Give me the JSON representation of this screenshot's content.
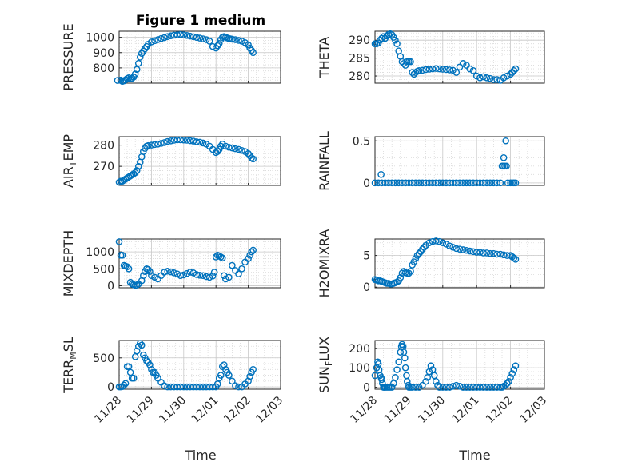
{
  "figure": {
    "title": "Figure 1 medium",
    "xlabel": "Time"
  },
  "chart_data": [
    {
      "type": "scatter",
      "ylabel": "PRESSURE",
      "ylim": [
        700,
        1040
      ],
      "yticks": [
        800,
        900,
        1000
      ],
      "xlim": [
        "11/28",
        "12/03"
      ],
      "xticks": [
        "11/28",
        "11/29",
        "11/30",
        "12/01",
        "12/02",
        "12/03"
      ],
      "grid": true,
      "x": [
        -0.05,
        0.05,
        0.1,
        0.15,
        0.2,
        0.25,
        0.3,
        0.35,
        0.4,
        0.45,
        0.5,
        0.55,
        0.6,
        0.65,
        0.7,
        0.75,
        0.8,
        0.85,
        0.9,
        1.0,
        1.1,
        1.2,
        1.3,
        1.4,
        1.5,
        1.6,
        1.7,
        1.8,
        1.9,
        2.0,
        2.1,
        2.2,
        2.3,
        2.4,
        2.5,
        2.6,
        2.7,
        2.8,
        2.9,
        3.0,
        3.05,
        3.1,
        3.15,
        3.2,
        3.25,
        3.3,
        3.35,
        3.4,
        3.45,
        3.5,
        3.6,
        3.7,
        3.8,
        3.9,
        4.0,
        4.05,
        4.1,
        4.15
      ],
      "y": [
        718,
        720,
        712,
        715,
        722,
        730,
        735,
        728,
        732,
        740,
        760,
        790,
        830,
        870,
        895,
        910,
        925,
        940,
        955,
        970,
        978,
        985,
        992,
        998,
        1005,
        1010,
        1014,
        1016,
        1018,
        1016,
        1012,
        1008,
        1004,
        1000,
        995,
        990,
        985,
        975,
        940,
        930,
        945,
        960,
        985,
        1000,
        1005,
        1002,
        996,
        992,
        990,
        988,
        985,
        980,
        975,
        965,
        950,
        930,
        915,
        900
      ]
    },
    {
      "type": "scatter",
      "ylabel": "THETA",
      "ylim": [
        278,
        292.5
      ],
      "yticks": [
        280,
        285,
        290
      ],
      "xlim": [
        "11/28",
        "12/03"
      ],
      "xticks": [
        "11/28",
        "11/29",
        "11/30",
        "12/01",
        "12/02",
        "12/03"
      ],
      "grid": true,
      "x": [
        0.0,
        0.05,
        0.1,
        0.15,
        0.2,
        0.25,
        0.3,
        0.35,
        0.4,
        0.45,
        0.5,
        0.55,
        0.6,
        0.65,
        0.7,
        0.75,
        0.8,
        0.85,
        0.9,
        0.95,
        1.0,
        1.05,
        1.1,
        1.15,
        1.2,
        1.25,
        1.3,
        1.4,
        1.5,
        1.6,
        1.7,
        1.8,
        1.9,
        2.0,
        2.1,
        2.2,
        2.3,
        2.4,
        2.5,
        2.6,
        2.7,
        2.8,
        2.9,
        3.0,
        3.1,
        3.2,
        3.3,
        3.4,
        3.5,
        3.6,
        3.7,
        3.8,
        3.9,
        4.0,
        4.05,
        4.1,
        4.15
      ],
      "y": [
        289.0,
        289.0,
        289.2,
        290.0,
        290.5,
        291.0,
        290.5,
        291.2,
        291.6,
        291.8,
        291.5,
        290.8,
        290.0,
        289.0,
        287.0,
        285.5,
        284.0,
        283.5,
        283.0,
        284.0,
        284.0,
        284.0,
        281.0,
        280.5,
        281.0,
        281.3,
        281.5,
        281.6,
        281.8,
        281.9,
        282.0,
        282.1,
        282.0,
        281.9,
        281.8,
        281.7,
        281.6,
        281.0,
        282.5,
        283.5,
        283.0,
        282.0,
        281.5,
        280.0,
        279.5,
        279.8,
        279.5,
        279.3,
        279.0,
        279.0,
        278.8,
        279.5,
        280.0,
        280.5,
        281.0,
        281.5,
        282.0
      ]
    },
    {
      "type": "scatter",
      "ylabel": "AIR_TEMP",
      "ylim": [
        261,
        284
      ],
      "yticks": [
        260,
        270,
        280
      ],
      "xlim": [
        "11/28",
        "12/03"
      ],
      "xticks": [
        "11/28",
        "11/29",
        "11/30",
        "12/01",
        "12/02",
        "12/03"
      ],
      "grid": true,
      "x": [
        0.0,
        0.05,
        0.1,
        0.15,
        0.2,
        0.25,
        0.3,
        0.35,
        0.4,
        0.45,
        0.5,
        0.55,
        0.6,
        0.65,
        0.7,
        0.75,
        0.8,
        0.85,
        0.9,
        1.0,
        1.1,
        1.2,
        1.3,
        1.4,
        1.5,
        1.6,
        1.7,
        1.8,
        1.9,
        2.0,
        2.1,
        2.2,
        2.3,
        2.4,
        2.5,
        2.6,
        2.7,
        2.8,
        2.9,
        3.0,
        3.05,
        3.1,
        3.15,
        3.2,
        3.3,
        3.4,
        3.5,
        3.6,
        3.7,
        3.8,
        3.9,
        4.0,
        4.05,
        4.1,
        4.15
      ],
      "y": [
        262.5,
        263.0,
        263.0,
        263.5,
        264.0,
        264.5,
        265.0,
        265.5,
        266.0,
        266.5,
        267.0,
        268.0,
        270.0,
        272.0,
        274.5,
        277.0,
        278.5,
        279.5,
        279.8,
        280.0,
        280.3,
        280.5,
        280.8,
        281.2,
        281.7,
        282.0,
        282.3,
        282.5,
        282.5,
        282.4,
        282.3,
        282.1,
        281.9,
        281.6,
        281.4,
        281.0,
        280.5,
        279.5,
        278.0,
        276.5,
        277.0,
        278.0,
        279.5,
        280.5,
        279.5,
        279.0,
        278.7,
        278.3,
        278.0,
        277.5,
        277.0,
        276.0,
        275.0,
        274.0,
        273.5
      ]
    },
    {
      "type": "scatter",
      "ylabel": "RAINFALL",
      "ylim": [
        -0.03,
        0.55
      ],
      "yticks": [
        0,
        0.5
      ],
      "xlim": [
        "11/28",
        "12/03"
      ],
      "xticks": [
        "11/28",
        "11/29",
        "11/30",
        "12/01",
        "12/02",
        "12/03"
      ],
      "grid": true,
      "x": [
        0.0,
        0.1,
        0.2,
        0.3,
        0.4,
        0.5,
        0.6,
        0.7,
        0.8,
        0.9,
        1.0,
        1.1,
        1.2,
        1.3,
        1.4,
        1.5,
        1.6,
        1.7,
        1.8,
        1.9,
        2.0,
        2.1,
        2.2,
        2.3,
        2.4,
        2.5,
        2.6,
        2.7,
        2.8,
        2.9,
        3.0,
        3.1,
        3.2,
        3.3,
        3.4,
        3.5,
        3.6,
        3.7,
        3.75,
        3.78,
        3.8,
        3.83,
        3.86,
        3.88,
        3.92,
        4.0,
        4.05,
        4.1,
        4.15,
        0.18
      ],
      "y": [
        0,
        0,
        0,
        0,
        0,
        0,
        0,
        0,
        0,
        0,
        0,
        0,
        0,
        0,
        0,
        0,
        0,
        0,
        0,
        0,
        0,
        0,
        0,
        0,
        0,
        0,
        0,
        0,
        0,
        0,
        0,
        0,
        0,
        0,
        0,
        0,
        0,
        0,
        0.2,
        0.2,
        0.3,
        0.2,
        0.5,
        0.2,
        0,
        0,
        0,
        0,
        0,
        0.1
      ]
    },
    {
      "type": "scatter",
      "ylabel": "MIXDEPTH",
      "ylim": [
        -60,
        1380
      ],
      "yticks": [
        0,
        500,
        1000
      ],
      "xlim": [
        "11/28",
        "12/03"
      ],
      "xticks": [
        "11/28",
        "11/29",
        "11/30",
        "12/01",
        "12/02",
        "12/03"
      ],
      "grid": true,
      "x": [
        0.0,
        0.05,
        0.1,
        0.15,
        0.2,
        0.25,
        0.3,
        0.35,
        0.4,
        0.45,
        0.5,
        0.55,
        0.6,
        0.7,
        0.75,
        0.8,
        0.85,
        0.9,
        0.95,
        1.0,
        1.1,
        1.2,
        1.3,
        1.4,
        1.5,
        1.6,
        1.7,
        1.8,
        1.9,
        2.0,
        2.1,
        2.2,
        2.3,
        2.4,
        2.5,
        2.6,
        2.7,
        2.8,
        2.9,
        2.95,
        3.0,
        3.05,
        3.1,
        3.15,
        3.2,
        3.25,
        3.3,
        3.4,
        3.5,
        3.6,
        3.7,
        3.8,
        3.9,
        4.0,
        4.05,
        4.1,
        4.15
      ],
      "y": [
        1300,
        900,
        900,
        600,
        580,
        560,
        500,
        100,
        50,
        30,
        10,
        20,
        50,
        150,
        300,
        420,
        500,
        480,
        420,
        300,
        250,
        200,
        300,
        400,
        430,
        410,
        380,
        350,
        300,
        320,
        360,
        400,
        380,
        330,
        310,
        300,
        270,
        250,
        290,
        400,
        850,
        900,
        880,
        850,
        820,
        300,
        200,
        250,
        600,
        450,
        350,
        500,
        700,
        800,
        900,
        1000,
        1050
      ]
    },
    {
      "type": "scatter",
      "ylabel": "H2OMIXRA",
      "ylim": [
        -0.1,
        7.6
      ],
      "yticks": [
        0,
        5
      ],
      "xlim": [
        "11/28",
        "12/03"
      ],
      "xticks": [
        "11/28",
        "11/29",
        "11/30",
        "12/01",
        "12/02",
        "12/03"
      ],
      "grid": true,
      "x": [
        0.0,
        0.05,
        0.1,
        0.15,
        0.2,
        0.25,
        0.3,
        0.35,
        0.4,
        0.45,
        0.5,
        0.55,
        0.6,
        0.65,
        0.7,
        0.75,
        0.8,
        0.85,
        0.9,
        0.95,
        1.0,
        1.05,
        1.1,
        1.15,
        1.2,
        1.25,
        1.3,
        1.35,
        1.4,
        1.45,
        1.5,
        1.6,
        1.7,
        1.8,
        1.9,
        2.0,
        2.1,
        2.2,
        2.3,
        2.4,
        2.5,
        2.6,
        2.7,
        2.8,
        2.9,
        3.0,
        3.1,
        3.2,
        3.3,
        3.4,
        3.5,
        3.6,
        3.7,
        3.8,
        3.9,
        4.0,
        4.05,
        4.1,
        4.15
      ],
      "y": [
        1.2,
        1.1,
        1.0,
        1.0,
        0.9,
        0.8,
        0.7,
        0.6,
        0.6,
        0.5,
        0.5,
        0.6,
        0.7,
        0.8,
        1.0,
        1.5,
        2.2,
        2.5,
        2.3,
        2.2,
        2.2,
        2.5,
        3.5,
        4.0,
        4.5,
        5.0,
        5.3,
        5.6,
        6.0,
        6.3,
        6.6,
        7.0,
        7.2,
        7.3,
        7.2,
        7.0,
        6.8,
        6.5,
        6.3,
        6.1,
        6.0,
        5.9,
        5.8,
        5.7,
        5.6,
        5.5,
        5.5,
        5.4,
        5.4,
        5.3,
        5.3,
        5.2,
        5.2,
        5.1,
        5.0,
        5.0,
        4.8,
        4.6,
        4.4
      ]
    },
    {
      "type": "scatter",
      "ylabel": "TERR_MSL",
      "ylim": [
        -40,
        800
      ],
      "yticks": [
        0,
        500
      ],
      "xlim": [
        "11/28",
        "12/03"
      ],
      "xticks": [
        "11/28",
        "11/29",
        "11/30",
        "12/01",
        "12/02",
        "12/03"
      ],
      "grid": true,
      "x": [
        0.0,
        0.05,
        0.1,
        0.15,
        0.2,
        0.25,
        0.3,
        0.35,
        0.4,
        0.45,
        0.5,
        0.55,
        0.6,
        0.65,
        0.7,
        0.75,
        0.8,
        0.85,
        0.9,
        0.95,
        1.0,
        1.05,
        1.1,
        1.15,
        1.2,
        1.3,
        1.4,
        1.5,
        1.6,
        1.7,
        1.8,
        1.9,
        2.0,
        2.1,
        2.2,
        2.3,
        2.4,
        2.5,
        2.6,
        2.7,
        2.8,
        2.9,
        3.0,
        3.05,
        3.1,
        3.15,
        3.2,
        3.25,
        3.3,
        3.35,
        3.4,
        3.5,
        3.6,
        3.7,
        3.8,
        3.9,
        4.0,
        4.05,
        4.1,
        4.15
      ],
      "y": [
        0,
        0,
        5,
        30,
        60,
        350,
        350,
        250,
        150,
        150,
        520,
        620,
        700,
        750,
        720,
        550,
        500,
        450,
        420,
        380,
        300,
        250,
        250,
        200,
        150,
        80,
        20,
        0,
        0,
        0,
        0,
        0,
        0,
        0,
        0,
        0,
        0,
        0,
        0,
        0,
        0,
        0,
        0,
        50,
        150,
        200,
        350,
        380,
        300,
        250,
        200,
        100,
        20,
        0,
        0,
        50,
        100,
        180,
        250,
        300
      ]
    },
    {
      "type": "scatter",
      "ylabel": "SUN_FLUX",
      "ylim": [
        -10,
        240
      ],
      "yticks": [
        0,
        100,
        200
      ],
      "xlim": [
        "11/28",
        "12/03"
      ],
      "xticks": [
        "11/28",
        "11/29",
        "11/30",
        "12/01",
        "12/02",
        "12/03"
      ],
      "grid": true,
      "x": [
        0.0,
        0.05,
        0.08,
        0.1,
        0.12,
        0.15,
        0.18,
        0.2,
        0.22,
        0.25,
        0.28,
        0.3,
        0.35,
        0.4,
        0.45,
        0.5,
        0.55,
        0.6,
        0.65,
        0.7,
        0.75,
        0.78,
        0.8,
        0.83,
        0.85,
        0.88,
        0.9,
        0.93,
        0.95,
        0.98,
        1.0,
        1.05,
        1.1,
        1.2,
        1.3,
        1.4,
        1.5,
        1.55,
        1.6,
        1.65,
        1.7,
        1.75,
        1.8,
        1.85,
        1.9,
        2.0,
        2.1,
        2.2,
        2.3,
        2.4,
        2.5,
        2.6,
        2.7,
        2.8,
        2.9,
        3.0,
        3.1,
        3.2,
        3.3,
        3.4,
        3.5,
        3.6,
        3.7,
        3.75,
        3.8,
        3.85,
        3.9,
        3.95,
        4.0,
        4.05,
        4.1,
        4.15
      ],
      "y": [
        60,
        100,
        130,
        120,
        90,
        60,
        50,
        40,
        20,
        0,
        0,
        0,
        0,
        0,
        0,
        0,
        20,
        50,
        90,
        130,
        180,
        210,
        220,
        210,
        180,
        150,
        100,
        60,
        30,
        10,
        0,
        0,
        0,
        0,
        0,
        10,
        30,
        50,
        80,
        110,
        90,
        60,
        30,
        10,
        0,
        0,
        0,
        0,
        5,
        10,
        5,
        0,
        0,
        0,
        0,
        0,
        0,
        0,
        0,
        0,
        0,
        0,
        0,
        0,
        5,
        10,
        20,
        30,
        50,
        70,
        90,
        110
      ]
    }
  ]
}
